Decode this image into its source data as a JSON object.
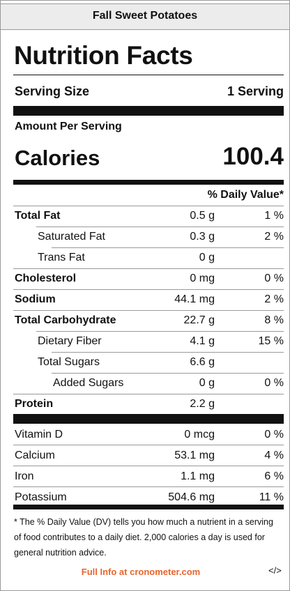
{
  "header": {
    "title": "Fall Sweet Potatoes"
  },
  "label": {
    "title": "Nutrition Facts",
    "serving_size": {
      "label": "Serving Size",
      "value": "1 Serving"
    },
    "amount_per_serving": "Amount Per Serving",
    "calories": {
      "label": "Calories",
      "value": 100.4
    },
    "daily_value_header": "% Daily Value*",
    "nutrients": [
      {
        "name": "Total Fat",
        "amount": "0.5 g",
        "dv": "1 %",
        "sub": [
          {
            "name": "Saturated Fat",
            "amount": "0.3 g",
            "dv": "2 %"
          },
          {
            "name": "Trans Fat",
            "amount": "0 g"
          }
        ]
      },
      {
        "name": "Cholesterol",
        "amount": "0 mg",
        "dv": "0 %"
      },
      {
        "name": "Sodium",
        "amount": "44.1 mg",
        "dv": "2 %"
      },
      {
        "name": "Total Carbohydrate",
        "amount": "22.7 g",
        "dv": "8 %",
        "sub": [
          {
            "name": "Dietary Fiber",
            "amount": "4.1 g",
            "dv": "15 %"
          },
          {
            "name": "Total Sugars",
            "amount": "6.6 g",
            "sub": [
              {
                "name": "Added Sugars",
                "amount": "0 g",
                "dv": "0 %"
              }
            ]
          }
        ]
      },
      {
        "name": "Protein",
        "amount": "2.2 g"
      }
    ],
    "vitamins": [
      {
        "name": "Vitamin D",
        "amount": "0 mcg",
        "dv": "0 %"
      },
      {
        "name": "Calcium",
        "amount": "53.1 mg",
        "dv": "4 %"
      },
      {
        "name": "Iron",
        "amount": "1.1 mg",
        "dv": "6 %"
      },
      {
        "name": "Potassium",
        "amount": "504.6 mg",
        "dv": "11 %"
      }
    ],
    "footnote": "* The % Daily Value (DV) tells you how much a nutrient in a serving of food contributes to a daily diet. 2,000 calories a day is used for general nutrition advice."
  },
  "footer": {
    "link": "Full Info at cronometer.com",
    "embed": "</>"
  }
}
